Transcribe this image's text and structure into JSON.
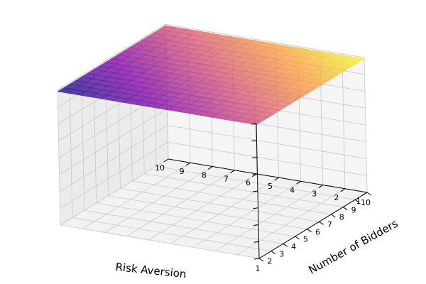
{
  "chart_data": {
    "type": "surface3d",
    "title": "",
    "xlabel": "Risk Aversion",
    "ylabel": "Number of Bidders",
    "zlabel": "",
    "x_ticks": [
      "1",
      "2",
      "3",
      "4",
      "5",
      "6",
      "7",
      "8",
      "9",
      "10"
    ],
    "y_ticks": [
      "1",
      "2",
      "3",
      "4",
      "5",
      "6",
      "7",
      "8",
      "9",
      "10"
    ],
    "z_ticks": [
      "",
      "",
      "",
      "",
      "",
      "",
      "",
      "",
      ""
    ],
    "xlim": [
      1,
      10
    ],
    "ylim": [
      1,
      10
    ],
    "zlim": [
      0,
      1
    ],
    "x": [
      1,
      1.5,
      2,
      2.5,
      3,
      3.5,
      4,
      4.5,
      5,
      5.5,
      6,
      6.5,
      7,
      7.5,
      8,
      8.5,
      9,
      9.5,
      10
    ],
    "y": [
      1,
      1.5,
      2,
      2.5,
      3,
      3.5,
      4,
      4.5,
      5,
      5.5,
      6,
      6.5,
      7,
      7.5,
      8,
      8.5,
      9,
      9.5,
      10
    ],
    "z": [
      [
        0.99,
        0.99,
        0.99,
        0.99,
        0.99,
        0.99,
        0.99,
        0.99,
        0.99,
        0.99,
        0.99,
        0.99,
        0.99,
        0.99,
        0.99,
        0.99,
        0.99,
        0.99,
        0.99
      ],
      [
        0.99,
        0.99,
        0.99,
        0.99,
        0.99,
        0.99,
        0.99,
        0.99,
        0.99,
        0.99,
        0.99,
        0.99,
        0.99,
        0.99,
        0.99,
        0.99,
        0.99,
        0.99,
        0.99
      ],
      [
        0.99,
        0.99,
        0.99,
        0.99,
        0.99,
        0.99,
        0.99,
        0.99,
        0.99,
        0.99,
        0.99,
        0.99,
        0.99,
        0.99,
        0.99,
        0.99,
        0.99,
        0.99,
        0.99
      ],
      [
        0.99,
        0.99,
        0.99,
        0.99,
        0.99,
        0.99,
        0.99,
        0.99,
        0.99,
        0.99,
        0.99,
        0.99,
        0.99,
        0.99,
        0.99,
        0.99,
        0.99,
        0.99,
        0.99
      ],
      [
        0.99,
        0.99,
        0.99,
        0.99,
        0.99,
        0.99,
        0.99,
        0.99,
        0.99,
        0.99,
        0.99,
        0.99,
        0.99,
        0.99,
        0.99,
        0.99,
        0.99,
        0.99,
        0.99
      ],
      [
        0.99,
        0.99,
        0.99,
        0.99,
        0.99,
        0.99,
        0.99,
        0.99,
        0.99,
        0.99,
        0.99,
        0.99,
        0.99,
        0.99,
        0.99,
        0.99,
        0.99,
        0.99,
        0.99
      ],
      [
        0.99,
        0.99,
        0.99,
        0.99,
        0.99,
        0.99,
        0.99,
        0.99,
        0.99,
        0.99,
        0.99,
        0.99,
        0.99,
        0.99,
        0.99,
        0.99,
        0.99,
        0.99,
        0.99
      ],
      [
        0.99,
        0.99,
        0.99,
        0.99,
        0.99,
        0.99,
        0.99,
        0.99,
        0.99,
        0.99,
        0.99,
        0.99,
        0.99,
        0.99,
        0.99,
        0.99,
        0.99,
        0.99,
        0.99
      ],
      [
        0.99,
        0.99,
        0.99,
        0.99,
        0.99,
        0.99,
        0.99,
        0.99,
        0.99,
        0.99,
        0.99,
        0.99,
        0.99,
        0.99,
        0.99,
        0.99,
        0.99,
        0.99,
        0.99
      ],
      [
        0.99,
        0.99,
        0.99,
        0.99,
        0.99,
        0.99,
        0.99,
        0.99,
        0.99,
        0.99,
        0.99,
        0.99,
        0.99,
        0.99,
        0.99,
        0.99,
        0.99,
        0.99,
        0.99
      ],
      [
        0.99,
        0.99,
        0.99,
        0.99,
        0.99,
        0.99,
        0.99,
        0.99,
        0.99,
        0.99,
        0.99,
        0.99,
        0.99,
        0.99,
        0.99,
        0.99,
        0.99,
        0.99,
        0.99
      ],
      [
        0.99,
        0.99,
        0.99,
        0.99,
        0.99,
        0.99,
        0.99,
        0.99,
        0.99,
        0.99,
        0.99,
        0.99,
        0.99,
        0.99,
        0.99,
        0.99,
        0.99,
        0.99,
        0.99
      ],
      [
        0.99,
        0.99,
        0.99,
        0.99,
        0.99,
        0.99,
        0.99,
        0.99,
        0.99,
        0.99,
        0.99,
        0.99,
        0.99,
        0.99,
        0.99,
        0.99,
        0.99,
        0.99,
        0.99
      ],
      [
        0.99,
        0.99,
        0.99,
        0.99,
        0.99,
        0.99,
        0.99,
        0.99,
        0.99,
        0.99,
        0.99,
        0.99,
        0.99,
        0.99,
        0.99,
        0.99,
        0.99,
        0.99,
        0.99
      ],
      [
        0.99,
        0.99,
        0.99,
        0.99,
        0.99,
        0.99,
        0.99,
        0.99,
        0.99,
        0.99,
        0.99,
        0.99,
        0.99,
        0.99,
        0.99,
        0.99,
        0.99,
        0.99,
        0.99
      ],
      [
        0.99,
        0.99,
        0.99,
        0.99,
        0.99,
        0.99,
        0.99,
        0.99,
        0.99,
        0.99,
        0.99,
        0.99,
        0.99,
        0.99,
        0.99,
        0.99,
        0.99,
        0.99,
        0.99
      ],
      [
        0.99,
        0.99,
        0.99,
        0.99,
        0.99,
        0.99,
        0.99,
        0.99,
        0.99,
        0.99,
        0.99,
        0.99,
        0.99,
        0.99,
        0.99,
        0.99,
        0.99,
        0.99,
        0.99
      ],
      [
        0.99,
        0.99,
        0.99,
        0.99,
        0.99,
        0.99,
        0.99,
        0.99,
        0.99,
        0.99,
        0.99,
        0.99,
        0.99,
        0.99,
        0.99,
        0.99,
        0.99,
        0.99,
        0.99
      ],
      [
        0.99,
        0.99,
        0.99,
        0.99,
        0.99,
        0.99,
        0.99,
        0.99,
        0.99,
        0.99,
        0.99,
        0.99,
        0.99,
        0.99,
        0.99,
        0.99,
        0.99,
        0.99,
        0.99
      ]
    ],
    "colormap": "plasma",
    "grid": true,
    "pane_color": "#f2f2f2",
    "grid_color": "#c8c8c8"
  }
}
